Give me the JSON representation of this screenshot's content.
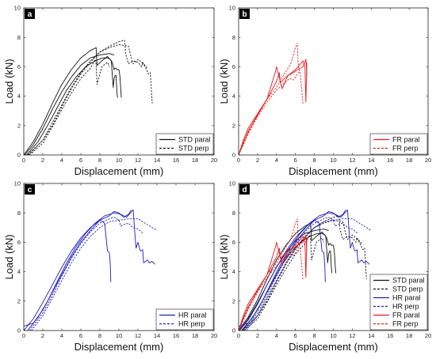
{
  "colors": {
    "black": "#111111",
    "red": "#e31a1c",
    "blue": "#1f1fb8"
  },
  "chart_data": [
    {
      "panel": "a",
      "type": "line",
      "xlabel": "Displacement (mm)",
      "ylabel": "Load (kN)",
      "xlim": [
        0,
        20
      ],
      "ylim": [
        0,
        10
      ],
      "xticks": [
        0,
        2,
        4,
        6,
        8,
        10,
        12,
        14,
        16,
        18,
        20
      ],
      "yticks": [
        0,
        2,
        4,
        6,
        8,
        10
      ],
      "legend_position": "bottom-right",
      "legend": [
        {
          "label": "STD paral",
          "color": "black",
          "dash": "solid"
        },
        {
          "label": "STD perp",
          "color": "black",
          "dash": "dashed"
        }
      ],
      "series": [
        {
          "name": "STD paral",
          "color": "black",
          "dash": "solid",
          "x": [
            0,
            1,
            2,
            3,
            4,
            5,
            6,
            7,
            7.6,
            7.7,
            8.2,
            8.8,
            9.2,
            9.4,
            9.5,
            9.6,
            9.7,
            9.8,
            9.85
          ],
          "y": [
            0,
            0.9,
            2.1,
            3.5,
            4.8,
            5.8,
            6.6,
            7.1,
            7.3,
            6.1,
            6.4,
            6.7,
            6.4,
            4.6,
            5.2,
            5.4,
            5.4,
            4.2,
            3.9
          ]
        },
        {
          "name": "STD paral",
          "color": "black",
          "dash": "solid",
          "x": [
            0.3,
            1.5,
            2.5,
            3.5,
            4.5,
            5.5,
            6.5,
            7.5,
            8.3,
            8.8,
            9.1,
            9.3,
            9.5,
            9.6,
            9.7,
            9.8,
            10.0,
            10.1,
            10.25
          ],
          "y": [
            0,
            0.9,
            2.0,
            3.2,
            4.4,
            5.3,
            6.0,
            6.4,
            6.6,
            6.6,
            6.5,
            6.3,
            5.8,
            5.9,
            5.9,
            5.8,
            5.8,
            5.4,
            3.9
          ]
        },
        {
          "name": "STD paral",
          "color": "black",
          "dash": "solid",
          "x": [
            0.1,
            1,
            2,
            3,
            4,
            5,
            6,
            7,
            8,
            9,
            9.5
          ],
          "y": [
            0,
            0.7,
            1.8,
            3.1,
            4.3,
            5.3,
            6.1,
            6.6,
            6.8,
            6.9,
            6.8
          ]
        },
        {
          "name": "STD perp",
          "color": "black",
          "dash": "dashed",
          "x": [
            0.5,
            2,
            3,
            4,
            5,
            6,
            7,
            8,
            9,
            10,
            10.6,
            10.7,
            11,
            11.5,
            12,
            12.4,
            12.5,
            12.9,
            13.1,
            13.3,
            13.5
          ],
          "y": [
            0,
            1.0,
            2.0,
            3.3,
            4.5,
            5.5,
            6.3,
            7.0,
            7.4,
            7.7,
            7.8,
            6.9,
            6.2,
            6.4,
            6.3,
            6.0,
            6.3,
            5.8,
            5.5,
            5.6,
            3.5
          ]
        },
        {
          "name": "STD perp",
          "color": "black",
          "dash": "dashed",
          "x": [
            0.6,
            2,
            3,
            4,
            5,
            6,
            7,
            7.5,
            7.6,
            7.7,
            8.2,
            8.6,
            8.8,
            9.0
          ],
          "y": [
            0,
            0.8,
            1.9,
            3.1,
            4.2,
            5.2,
            5.9,
            6.5,
            6.2,
            4.8,
            6.0,
            6.2,
            6.3,
            6.0
          ]
        },
        {
          "name": "STD perp",
          "color": "black",
          "dash": "dashed",
          "x": [
            0.4,
            2,
            3,
            4,
            5,
            6,
            7,
            8,
            9,
            10,
            11,
            11.3,
            11.5,
            12,
            12.6,
            13.0
          ],
          "y": [
            0,
            1.0,
            2.2,
            3.4,
            4.6,
            5.6,
            6.4,
            7.0,
            7.3,
            7.5,
            7.4,
            6.6,
            6.2,
            6.5,
            6.2,
            5.9
          ]
        }
      ]
    },
    {
      "panel": "b",
      "type": "line",
      "xlabel": "Displacement (mm)",
      "ylabel": "Load (kN)",
      "xlim": [
        0,
        20
      ],
      "ylim": [
        0,
        10
      ],
      "xticks": [
        0,
        2,
        4,
        6,
        8,
        10,
        12,
        14,
        16,
        18,
        20
      ],
      "yticks": [
        0,
        2,
        4,
        6,
        8,
        10
      ],
      "legend_position": "bottom-right",
      "legend": [
        {
          "label": "FR paral",
          "color": "red",
          "dash": "solid"
        },
        {
          "label": "FR perp",
          "color": "red",
          "dash": "dashed"
        }
      ],
      "series": [
        {
          "name": "FR paral",
          "color": "red",
          "dash": "solid",
          "x": [
            0,
            0.5,
            1,
            2,
            3,
            4,
            4.3,
            4.4,
            5,
            6,
            6.4,
            6.8,
            7.0,
            7.1,
            7.2
          ],
          "y": [
            0,
            1.0,
            1.8,
            2.8,
            3.8,
            5.0,
            5.6,
            4.9,
            5.3,
            5.8,
            6.1,
            6.4,
            6.0,
            3.6,
            6.3
          ]
        },
        {
          "name": "FR paral",
          "color": "red",
          "dash": "solid",
          "x": [
            0,
            0.5,
            1,
            2,
            3,
            3.9,
            4.0,
            4.6,
            5.2,
            5.8,
            6.2,
            6.8,
            7.1,
            7.2
          ],
          "y": [
            0,
            0.8,
            1.6,
            2.7,
            3.8,
            5.7,
            6.0,
            4.5,
            5.4,
            5.6,
            5.8,
            6.0,
            6.5,
            5.4
          ]
        },
        {
          "name": "FR perp",
          "color": "red",
          "dash": "dashed",
          "x": [
            0,
            0.5,
            1,
            2,
            3,
            4,
            5,
            5.5,
            6.0,
            6.2,
            6.3,
            6.5,
            6.8
          ],
          "y": [
            0,
            0.9,
            1.5,
            2.8,
            3.8,
            4.6,
            5.7,
            6.2,
            7.3,
            7.6,
            6.0,
            5.6,
            3.4
          ]
        },
        {
          "name": "FR perp",
          "color": "red",
          "dash": "dashed",
          "x": [
            0,
            0.5,
            1,
            2,
            3,
            4,
            5,
            5.4,
            5.8,
            6.3,
            6.5
          ],
          "y": [
            0,
            0.7,
            1.4,
            2.6,
            3.6,
            4.4,
            5.0,
            5.2,
            5.1,
            5.6,
            5.7
          ]
        }
      ]
    },
    {
      "panel": "c",
      "type": "line",
      "xlabel": "Displacement (mm)",
      "ylabel": "Load (kN)",
      "xlim": [
        0,
        20
      ],
      "ylim": [
        0,
        10
      ],
      "xticks": [
        0,
        2,
        4,
        6,
        8,
        10,
        12,
        14,
        16,
        18,
        20
      ],
      "yticks": [
        0,
        2,
        4,
        6,
        8,
        10
      ],
      "legend_position": "bottom-right",
      "legend": [
        {
          "label": "HR paral",
          "color": "blue",
          "dash": "solid"
        },
        {
          "label": "HR perp",
          "color": "blue",
          "dash": "dashed"
        }
      ],
      "series": [
        {
          "name": "HR paral",
          "color": "blue",
          "dash": "solid",
          "x": [
            0,
            1,
            2,
            3,
            4,
            5,
            6,
            7,
            8,
            8.5,
            8.8,
            9.0,
            9.1,
            9.15
          ],
          "y": [
            0.3,
            0.5,
            1.4,
            2.6,
            3.8,
            5.0,
            6.0,
            6.8,
            7.5,
            7.3,
            5.4,
            5.3,
            4.4,
            3.3
          ]
        },
        {
          "name": "HR paral",
          "color": "blue",
          "dash": "solid",
          "x": [
            0,
            1,
            2,
            3,
            4,
            5,
            6,
            7,
            8,
            9,
            9.5,
            10.0,
            10.5,
            11.0,
            11.3
          ],
          "y": [
            0,
            0.8,
            1.9,
            3.1,
            4.3,
            5.4,
            6.3,
            7.0,
            7.5,
            7.8,
            8.1,
            8.0,
            7.7,
            7.9,
            8.2
          ]
        },
        {
          "name": "HR paral",
          "color": "blue",
          "dash": "solid",
          "x": [
            0.4,
            1.5,
            2.5,
            3.5,
            4.5,
            5.5,
            6.5,
            7.5,
            8.5,
            9.5,
            10.2,
            10.8,
            11.5,
            11.7,
            11.8,
            12.0,
            12.2,
            12.3,
            12.5,
            12.6,
            13.0,
            13.2,
            13.5,
            13.8
          ],
          "y": [
            0,
            0.9,
            2.0,
            3.3,
            4.6,
            5.7,
            6.6,
            7.3,
            7.8,
            8.0,
            7.9,
            7.7,
            8.2,
            6.4,
            5.6,
            6.0,
            5.5,
            5.4,
            5.5,
            4.6,
            4.8,
            4.6,
            4.7,
            4.5
          ]
        },
        {
          "name": "HR perp",
          "color": "blue",
          "dash": "dashed",
          "x": [
            0.6,
            2,
            3,
            4,
            5,
            6,
            7,
            8,
            9,
            9.5,
            10.0,
            10.2,
            10.5,
            11.0,
            11.5,
            12.0,
            12.6
          ],
          "y": [
            0,
            1.2,
            2.4,
            3.7,
            4.9,
            5.9,
            6.7,
            7.3,
            7.6,
            7.7,
            7.5,
            7.1,
            7.2,
            7.3,
            7.0,
            6.9,
            6.6
          ]
        },
        {
          "name": "HR perp",
          "color": "blue",
          "dash": "dashed",
          "x": [
            0.8,
            2,
            3,
            4,
            5,
            6,
            7,
            8,
            9,
            10,
            11,
            11.5,
            12,
            13,
            14
          ],
          "y": [
            0,
            1.0,
            2.2,
            3.4,
            4.6,
            5.6,
            6.4,
            7.0,
            7.4,
            7.5,
            7.6,
            7.6,
            7.6,
            7.2,
            6.8
          ]
        }
      ]
    },
    {
      "panel": "d",
      "type": "line",
      "xlabel": "Displacement (mm)",
      "ylabel": "Load (kN)",
      "xlim": [
        0,
        20
      ],
      "ylim": [
        0,
        10
      ],
      "xticks": [
        0,
        2,
        4,
        6,
        8,
        10,
        12,
        14,
        16,
        18,
        20
      ],
      "yticks": [
        0,
        2,
        4,
        6,
        8,
        10
      ],
      "legend_position": "bottom-right",
      "legend": [
        {
          "label": "STD paral",
          "color": "black",
          "dash": "solid"
        },
        {
          "label": "STD perp",
          "color": "black",
          "dash": "dashed"
        },
        {
          "label": "HR paral",
          "color": "blue",
          "dash": "solid"
        },
        {
          "label": "HR perp",
          "color": "blue",
          "dash": "dashed"
        },
        {
          "label": "FR paral",
          "color": "red",
          "dash": "solid"
        },
        {
          "label": "FR perp",
          "color": "red",
          "dash": "dashed"
        }
      ],
      "series_from_panels": [
        "a",
        "c",
        "b"
      ]
    }
  ]
}
